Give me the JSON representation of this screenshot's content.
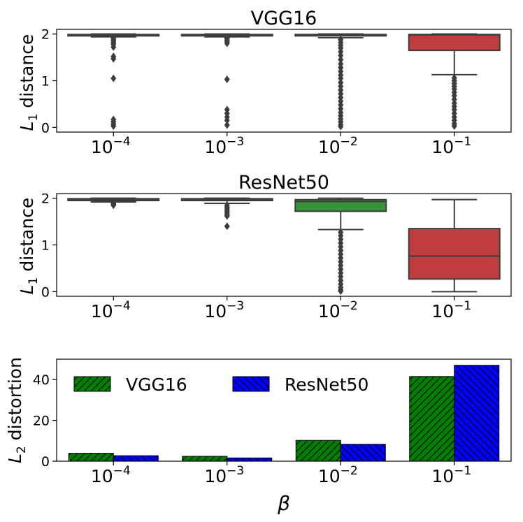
{
  "chart_data": [
    {
      "type": "box",
      "title": "VGG16",
      "ylabel_symbol": "L",
      "ylabel_sub": "1",
      "ylabel_rest": " distance",
      "ylim": [
        -0.1,
        2.1
      ],
      "yticks": [
        "0",
        "1",
        "2"
      ],
      "categories": [
        {
          "base": "10",
          "exp": "−4"
        },
        {
          "base": "10",
          "exp": "−3"
        },
        {
          "base": "10",
          "exp": "−2"
        },
        {
          "base": "10",
          "exp": "−1"
        }
      ],
      "boxes": [
        {
          "q1": 1.96,
          "median": 1.98,
          "q3": 1.99,
          "whislo": 1.94,
          "whishi": 2.0,
          "color": "#3a77b1",
          "fliers": [
            1.92,
            1.89,
            1.86,
            1.82,
            1.78,
            1.72,
            1.52,
            1.47,
            1.05,
            0.17,
            0.12,
            0.07,
            0.03
          ]
        },
        {
          "q1": 1.96,
          "median": 1.98,
          "q3": 1.99,
          "whislo": 1.94,
          "whishi": 2.0,
          "color": "#e1812c",
          "fliers": [
            1.92,
            1.9,
            1.87,
            1.84,
            1.8,
            1.03,
            0.38,
            0.3,
            0.22,
            0.15,
            0.05
          ]
        },
        {
          "q1": 1.96,
          "median": 1.98,
          "q3": 1.99,
          "whislo": 1.92,
          "whishi": 2.0,
          "color": "#3a923a",
          "fliers": [
            1.88,
            1.82,
            1.76,
            1.7,
            1.62,
            1.54,
            1.45,
            1.36,
            1.28,
            1.2,
            1.12,
            1.05,
            0.96,
            0.88,
            0.8,
            0.72,
            0.64,
            0.56,
            0.48,
            0.4,
            0.32,
            0.25,
            0.18,
            0.12,
            0.06,
            0.02
          ]
        },
        {
          "q1": 1.65,
          "median": 1.98,
          "q3": 1.99,
          "whislo": 1.13,
          "whishi": 2.0,
          "color": "#c03d3e",
          "fliers": [
            1.06,
            1.0,
            0.94,
            0.88,
            0.82,
            0.75,
            0.68,
            0.6,
            0.52,
            0.45,
            0.38,
            0.3,
            0.22,
            0.15,
            0.08,
            0.03
          ]
        }
      ]
    },
    {
      "type": "box",
      "title": "ResNet50",
      "ylabel_symbol": "L",
      "ylabel_sub": "1",
      "ylabel_rest": " distance",
      "ylim": [
        -0.1,
        2.1
      ],
      "yticks": [
        "0",
        "1",
        "2"
      ],
      "categories": [
        {
          "base": "10",
          "exp": "−4"
        },
        {
          "base": "10",
          "exp": "−3"
        },
        {
          "base": "10",
          "exp": "−2"
        },
        {
          "base": "10",
          "exp": "−1"
        }
      ],
      "boxes": [
        {
          "q1": 1.95,
          "median": 1.97,
          "q3": 1.99,
          "whislo": 1.92,
          "whishi": 2.0,
          "color": "#3a77b1",
          "fliers": [
            1.89,
            1.87,
            1.85
          ]
        },
        {
          "q1": 1.95,
          "median": 1.97,
          "q3": 1.99,
          "whislo": 1.89,
          "whishi": 2.0,
          "color": "#e1812c",
          "fliers": [
            1.85,
            1.81,
            1.77,
            1.73,
            1.69,
            1.65,
            1.62,
            1.4
          ]
        },
        {
          "q1": 1.72,
          "median": 1.93,
          "q3": 1.97,
          "whislo": 1.33,
          "whishi": 2.0,
          "color": "#3a923a",
          "fliers": [
            1.27,
            1.2,
            1.12,
            1.04,
            0.96,
            0.88,
            0.8,
            0.72,
            0.64,
            0.56,
            0.48,
            0.4,
            0.32,
            0.24,
            0.16,
            0.09,
            0.04,
            0.01
          ]
        },
        {
          "q1": 0.27,
          "median": 0.76,
          "q3": 1.35,
          "whislo": 0.0,
          "whishi": 1.97,
          "color": "#c03d3e",
          "fliers": []
        }
      ]
    },
    {
      "type": "bar",
      "ylabel_symbol": "L",
      "ylabel_sub": "2",
      "ylabel_rest": " distortion",
      "xlabel": "β",
      "ylim": [
        0,
        50
      ],
      "yticks": [
        "0",
        "20",
        "40"
      ],
      "ytick_values": [
        0,
        20,
        40
      ],
      "categories": [
        {
          "base": "10",
          "exp": "−4"
        },
        {
          "base": "10",
          "exp": "−3"
        },
        {
          "base": "10",
          "exp": "−2"
        },
        {
          "base": "10",
          "exp": "−1"
        }
      ],
      "series": [
        {
          "name": "VGG16",
          "values": [
            3.9,
            2.4,
            10.2,
            41.5
          ],
          "color": "#008000",
          "hatch": "///"
        },
        {
          "name": "ResNet50",
          "values": [
            2.7,
            1.6,
            8.3,
            47.0
          ],
          "color": "#0000ff",
          "hatch": "\\\\\\"
        }
      ],
      "legend": "upper-left"
    }
  ]
}
